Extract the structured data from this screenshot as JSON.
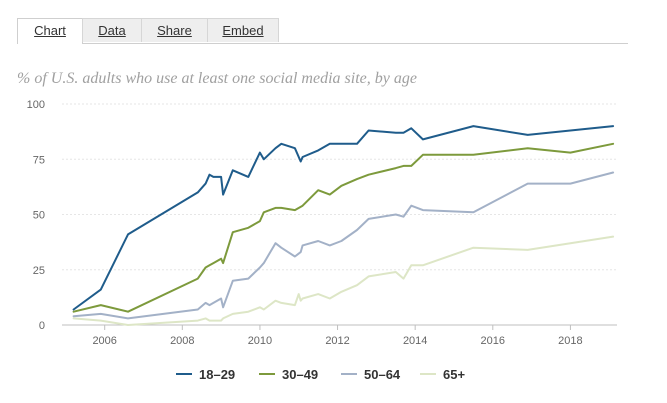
{
  "tabs": [
    {
      "label": "Chart",
      "active": true
    },
    {
      "label": "Data",
      "active": false
    },
    {
      "label": "Share",
      "active": false
    },
    {
      "label": "Embed",
      "active": false
    }
  ],
  "chart_data": {
    "type": "line",
    "title": "% of U.S. adults who use at least one social media site, by age",
    "ylim": [
      0,
      100
    ],
    "yticks": [
      0,
      25,
      50,
      75,
      100
    ],
    "xlim": [
      2004.9,
      2019.2
    ],
    "xticks": [
      2006,
      2008,
      2010,
      2012,
      2014,
      2016,
      2018
    ],
    "grid": "horizontal",
    "legend_position": "bottom",
    "series": [
      {
        "name": "18–29",
        "color": "#1f5c8b",
        "points": [
          [
            2005.2,
            7
          ],
          [
            2005.9,
            16
          ],
          [
            2006.6,
            41
          ],
          [
            2008.4,
            60
          ],
          [
            2008.6,
            64
          ],
          [
            2008.7,
            68
          ],
          [
            2008.8,
            67
          ],
          [
            2009.0,
            67
          ],
          [
            2009.05,
            59
          ],
          [
            2009.3,
            70
          ],
          [
            2009.7,
            67
          ],
          [
            2010.0,
            78
          ],
          [
            2010.1,
            75
          ],
          [
            2010.4,
            80
          ],
          [
            2010.55,
            82
          ],
          [
            2010.9,
            80
          ],
          [
            2011.05,
            74
          ],
          [
            2011.1,
            76
          ],
          [
            2011.5,
            79
          ],
          [
            2011.8,
            82
          ],
          [
            2012.1,
            82
          ],
          [
            2012.5,
            82
          ],
          [
            2012.8,
            88
          ],
          [
            2013.5,
            87
          ],
          [
            2013.7,
            87
          ],
          [
            2013.9,
            89
          ],
          [
            2014.2,
            84
          ],
          [
            2015.5,
            90
          ],
          [
            2016.9,
            86
          ],
          [
            2018.0,
            88
          ],
          [
            2019.1,
            90
          ]
        ]
      },
      {
        "name": "30–49",
        "color": "#7d9a3c",
        "points": [
          [
            2005.2,
            6
          ],
          [
            2005.9,
            9
          ],
          [
            2006.6,
            6
          ],
          [
            2008.4,
            21
          ],
          [
            2008.6,
            26
          ],
          [
            2008.7,
            27
          ],
          [
            2008.8,
            28
          ],
          [
            2009.0,
            30
          ],
          [
            2009.05,
            28
          ],
          [
            2009.3,
            42
          ],
          [
            2009.7,
            44
          ],
          [
            2010.0,
            47
          ],
          [
            2010.1,
            51
          ],
          [
            2010.4,
            53
          ],
          [
            2010.55,
            53
          ],
          [
            2010.9,
            52
          ],
          [
            2011.1,
            54
          ],
          [
            2011.5,
            61
          ],
          [
            2011.8,
            59
          ],
          [
            2012.1,
            63
          ],
          [
            2012.5,
            66
          ],
          [
            2012.8,
            68
          ],
          [
            2013.5,
            71
          ],
          [
            2013.7,
            72
          ],
          [
            2013.9,
            72
          ],
          [
            2014.2,
            77
          ],
          [
            2015.5,
            77
          ],
          [
            2016.9,
            80
          ],
          [
            2018.0,
            78
          ],
          [
            2019.1,
            82
          ]
        ]
      },
      {
        "name": "50–64",
        "color": "#a3b1c7",
        "points": [
          [
            2005.2,
            4
          ],
          [
            2005.9,
            5
          ],
          [
            2006.6,
            3
          ],
          [
            2008.4,
            7
          ],
          [
            2008.6,
            10
          ],
          [
            2008.7,
            9
          ],
          [
            2008.8,
            10
          ],
          [
            2009.0,
            12
          ],
          [
            2009.05,
            8
          ],
          [
            2009.3,
            20
          ],
          [
            2009.7,
            21
          ],
          [
            2010.0,
            26
          ],
          [
            2010.1,
            28
          ],
          [
            2010.4,
            37
          ],
          [
            2010.55,
            35
          ],
          [
            2010.9,
            31
          ],
          [
            2011.05,
            33
          ],
          [
            2011.1,
            36
          ],
          [
            2011.5,
            38
          ],
          [
            2011.8,
            36
          ],
          [
            2012.1,
            38
          ],
          [
            2012.5,
            43
          ],
          [
            2012.8,
            48
          ],
          [
            2013.5,
            50
          ],
          [
            2013.7,
            49
          ],
          [
            2013.9,
            54
          ],
          [
            2014.2,
            52
          ],
          [
            2015.5,
            51
          ],
          [
            2016.9,
            64
          ],
          [
            2018.0,
            64
          ],
          [
            2019.1,
            69
          ]
        ]
      },
      {
        "name": "65+",
        "color": "#dde6c6",
        "points": [
          [
            2005.2,
            3
          ],
          [
            2005.9,
            2
          ],
          [
            2006.6,
            0
          ],
          [
            2008.4,
            2
          ],
          [
            2008.6,
            3
          ],
          [
            2008.7,
            2
          ],
          [
            2008.8,
            2
          ],
          [
            2009.0,
            2
          ],
          [
            2009.05,
            3
          ],
          [
            2009.3,
            5
          ],
          [
            2009.7,
            6
          ],
          [
            2010.0,
            8
          ],
          [
            2010.1,
            7
          ],
          [
            2010.4,
            11
          ],
          [
            2010.55,
            10
          ],
          [
            2010.9,
            9
          ],
          [
            2011.0,
            14
          ],
          [
            2011.05,
            11
          ],
          [
            2011.1,
            12
          ],
          [
            2011.5,
            14
          ],
          [
            2011.8,
            12
          ],
          [
            2012.1,
            15
          ],
          [
            2012.5,
            18
          ],
          [
            2012.8,
            22
          ],
          [
            2013.5,
            24
          ],
          [
            2013.7,
            21
          ],
          [
            2013.9,
            27
          ],
          [
            2014.2,
            27
          ],
          [
            2015.5,
            35
          ],
          [
            2016.9,
            34
          ],
          [
            2018.0,
            37
          ],
          [
            2019.1,
            40
          ]
        ]
      }
    ]
  }
}
